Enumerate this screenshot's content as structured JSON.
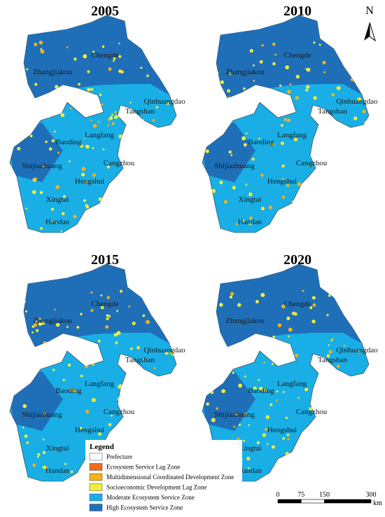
{
  "maps": [
    {
      "year": "2005"
    },
    {
      "year": "2010"
    },
    {
      "year": "2015"
    },
    {
      "year": "2020"
    }
  ],
  "cities": [
    "Chengde",
    "Zhangjiakou",
    "Qinhuangdao",
    "Tangshan",
    "Langfang",
    "Baoding",
    "Shijiazhuang",
    "Cangzhou",
    "Hengshui",
    "Xingtai",
    "Handan"
  ],
  "legend": {
    "title": "Legend",
    "items": [
      {
        "label": "Prefecture",
        "color": "#ffffff"
      },
      {
        "label": "Ecosystem Service Lag Zone",
        "color": "#f06a1e"
      },
      {
        "label": "Multidimensional Coordinated Development Zone",
        "color": "#f5b21a"
      },
      {
        "label": "Socioeconomic Development Lag Zone",
        "color": "#f5ee3a"
      },
      {
        "label": "Moderate Ecosystem Service Zone",
        "color": "#19aee6"
      },
      {
        "label": "High Ecosystem Service Zone",
        "color": "#1f6fb8"
      }
    ]
  },
  "scale_bar": {
    "labels": [
      "0",
      "75",
      "150",
      "300"
    ],
    "unit": "km"
  },
  "north": "N"
}
